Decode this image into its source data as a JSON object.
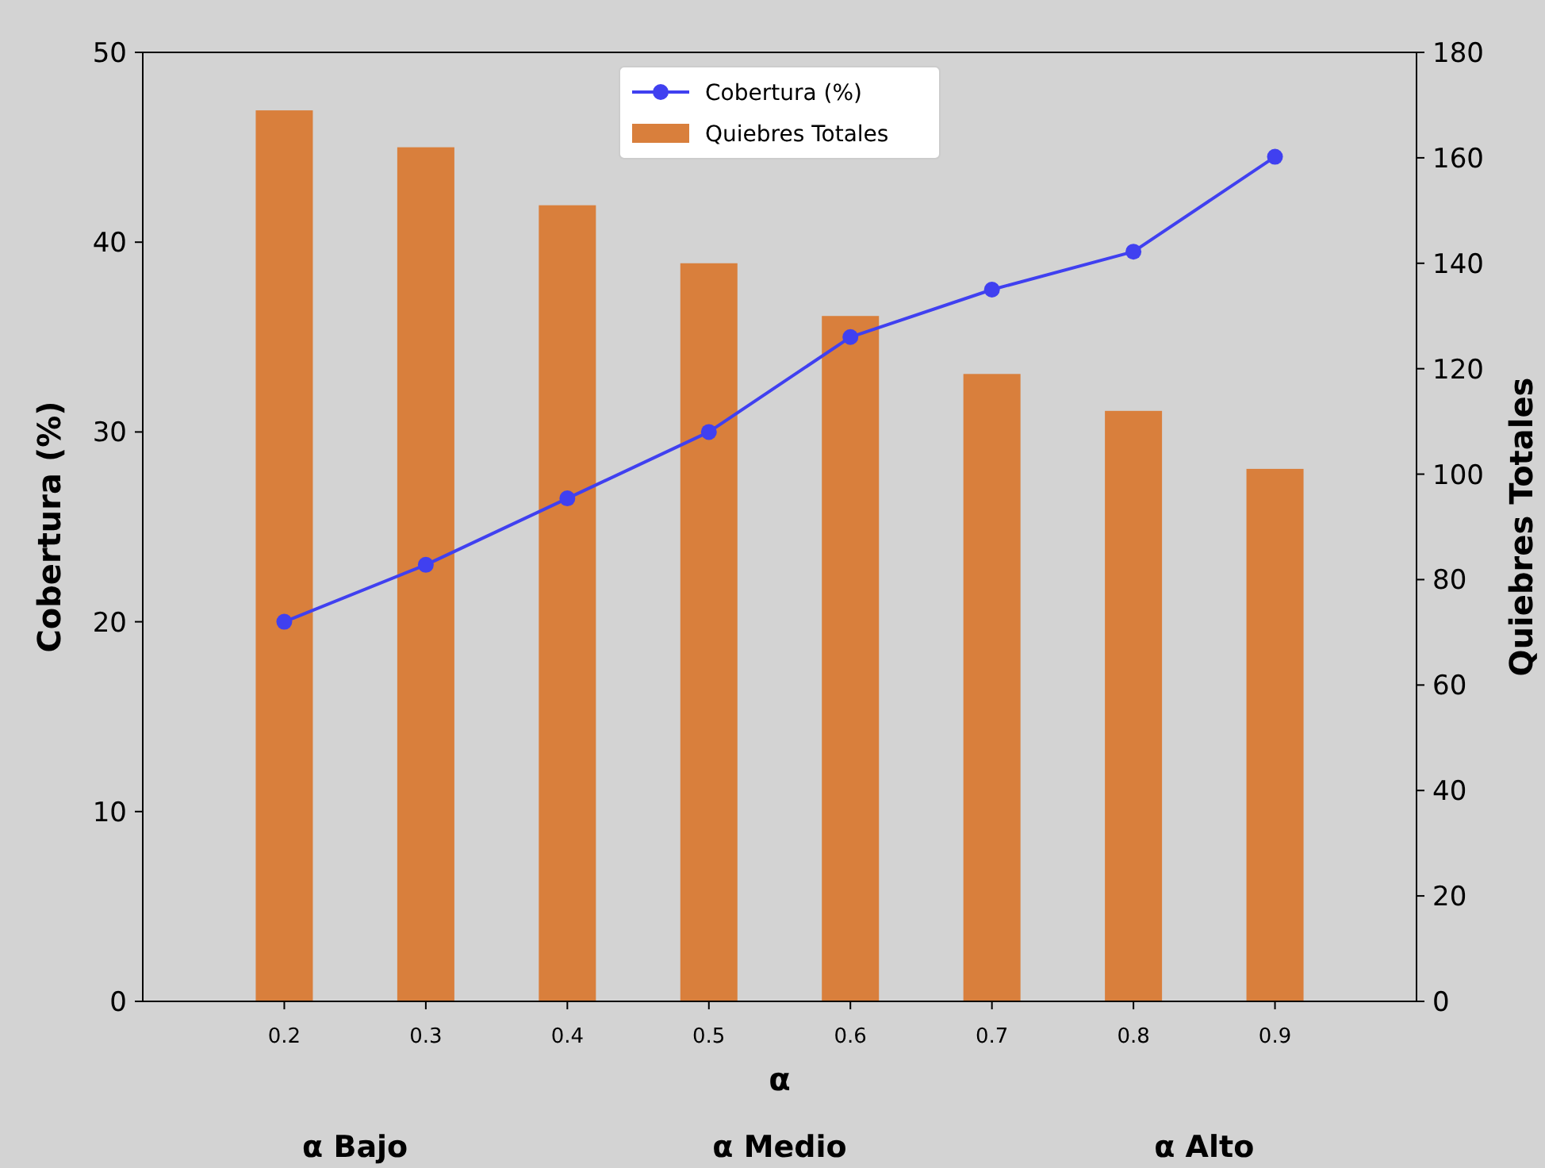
{
  "chart_data": {
    "type": "line",
    "xlabel": "α",
    "ylabel": "Cobertura (%)",
    "y2label": "Quiebres Totales",
    "x": [
      0.2,
      0.3,
      0.4,
      0.5,
      0.6,
      0.7,
      0.8,
      0.9
    ],
    "xlim": [
      0.1,
      1.0
    ],
    "xticks": [
      {
        "value": 0.2,
        "label": "0.2"
      },
      {
        "value": 0.3,
        "label": "0.3"
      },
      {
        "value": 0.4,
        "label": "0.4"
      },
      {
        "value": 0.5,
        "label": "0.5"
      },
      {
        "value": 0.6,
        "label": "0.6"
      },
      {
        "value": 0.7,
        "label": "0.7"
      },
      {
        "value": 0.8,
        "label": "0.8"
      },
      {
        "value": 0.9,
        "label": "0.9"
      }
    ],
    "ylim": [
      0,
      50
    ],
    "yticks": [
      0,
      10,
      20,
      30,
      40,
      50
    ],
    "y2lim": [
      0,
      180
    ],
    "y2ticks": [
      0,
      20,
      40,
      60,
      80,
      100,
      120,
      140,
      160,
      180
    ],
    "series": [
      {
        "name": "Cobertura (%)",
        "color": "#4040f0",
        "values": [
          20,
          23,
          26.5,
          30,
          35,
          37.5,
          39.5,
          44.5
        ]
      },
      {
        "name": "Quiebres Totales",
        "type": "bar",
        "axis": "y2",
        "color": "#d97f3c",
        "values": [
          169,
          162,
          151,
          140,
          130,
          119,
          112,
          101
        ]
      }
    ],
    "marker": "circle",
    "legend": "top",
    "grid": false,
    "annotations": [
      "α Bajo",
      "α Medio",
      "α Alto"
    ]
  }
}
